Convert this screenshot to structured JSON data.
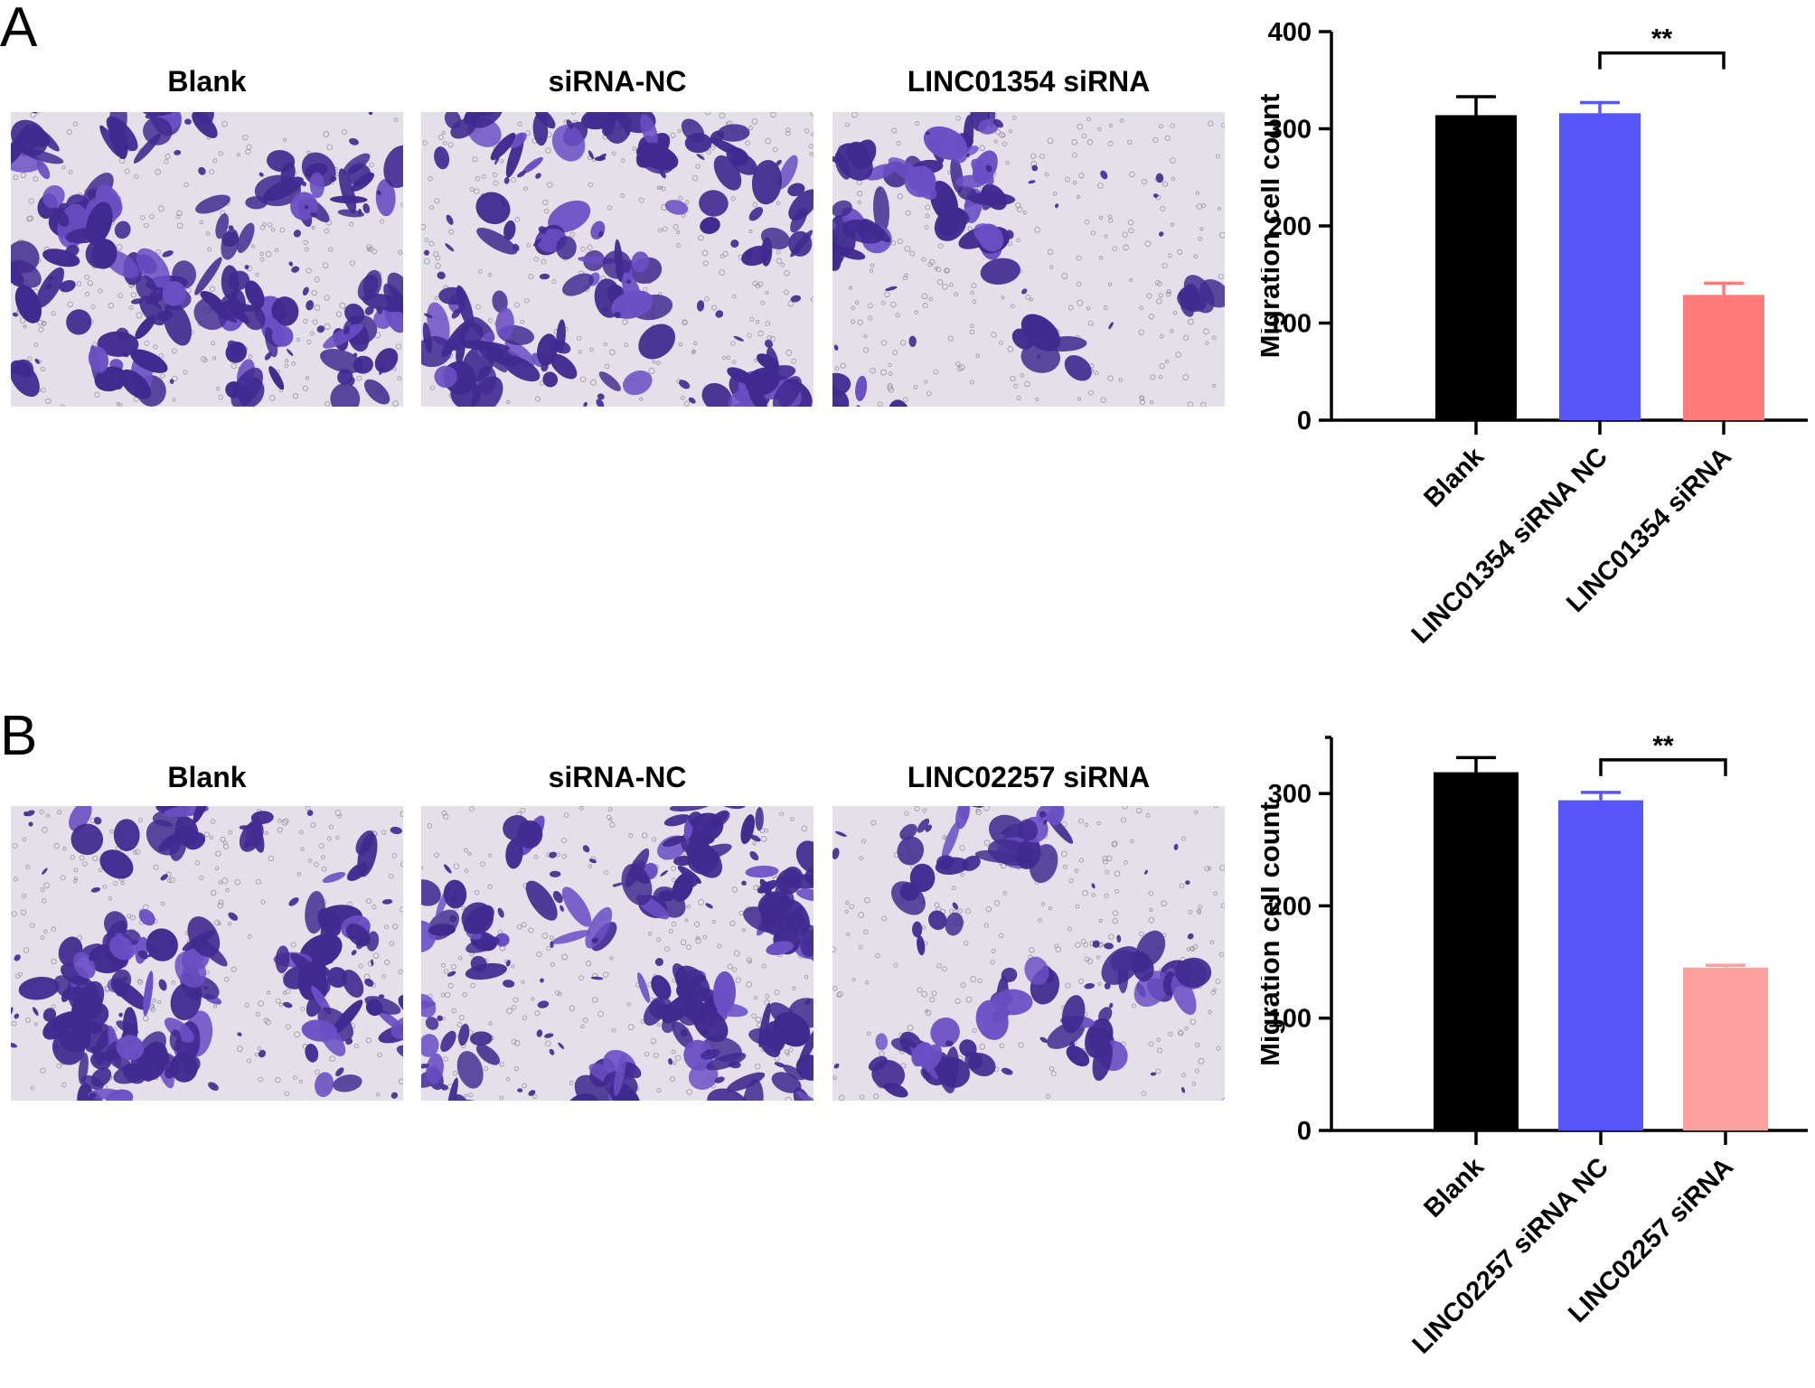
{
  "panel_a": {
    "letter": "A",
    "images": [
      {
        "title": "Blank"
      },
      {
        "title": "siRNA-NC"
      },
      {
        "title": "LINC01354 siRNA"
      }
    ]
  },
  "panel_b": {
    "letter": "B",
    "images": [
      {
        "title": "Blank"
      },
      {
        "title": "siRNA-NC"
      },
      {
        "title": "LINC02257 siRNA"
      }
    ]
  },
  "colors": {
    "stain": "#3f2a8f",
    "stain_light": "#6a4fc4",
    "membrane": "#e4e0ea",
    "bar_blank": "#000000",
    "bar_nc": "#5757f7",
    "bar_sirna_a": "#ff7b7b",
    "bar_sirna_b": "#ffa0a0"
  },
  "chart_data": [
    {
      "type": "bar",
      "categories": [
        "Blank",
        "LINC01354 siRNA NC",
        "LINC01354 siRNA"
      ],
      "values": [
        314,
        316,
        129
      ],
      "errors": [
        19,
        11,
        12
      ],
      "ylabel": "Migration cell count",
      "xlabel": "",
      "ylim": [
        0,
        400
      ],
      "yticks": [
        0,
        100,
        200,
        300,
        400
      ],
      "significance": {
        "from": 1,
        "to": 2,
        "label": "**",
        "y": 378
      },
      "colors": [
        "#000000",
        "#5757f7",
        "#ff7b7b"
      ]
    },
    {
      "type": "bar",
      "categories": [
        "Blank",
        "LINC02257 siRNA NC",
        "LINC02257 siRNA"
      ],
      "values": [
        319,
        294,
        145
      ],
      "errors": [
        13,
        7,
        2
      ],
      "ylabel": "Migration cell count",
      "xlabel": "",
      "ylim": [
        0,
        350
      ],
      "yticks": [
        0,
        100,
        200,
        300
      ],
      "significance": {
        "from": 1,
        "to": 2,
        "label": "**",
        "y": 330
      },
      "colors": [
        "#000000",
        "#5757f7",
        "#ffa0a0"
      ]
    }
  ]
}
